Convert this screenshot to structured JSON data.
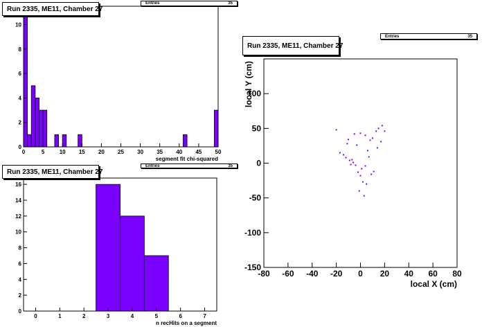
{
  "chart_data": [
    {
      "type": "bar",
      "title": "Run 2335, ME11, Chamber 27",
      "stats": {
        "label": "Entries",
        "value": "35"
      },
      "xlabel": "segment fit chi-squared",
      "xlim": [
        0,
        50
      ],
      "ylim": [
        0,
        11.5
      ],
      "bin_width": 1,
      "bins": [
        [
          0,
          11
        ],
        [
          1,
          1
        ],
        [
          2,
          5
        ],
        [
          3,
          4
        ],
        [
          4,
          3
        ],
        [
          5,
          3
        ],
        [
          6,
          0
        ],
        [
          7,
          0
        ],
        [
          8,
          1
        ],
        [
          9,
          0
        ],
        [
          10,
          1
        ],
        [
          11,
          0
        ],
        [
          12,
          0
        ],
        [
          13,
          0
        ],
        [
          14,
          1
        ],
        [
          41,
          1
        ],
        [
          49,
          3
        ]
      ],
      "xticks": [
        0,
        5,
        10,
        15,
        20,
        25,
        30,
        35,
        40,
        45,
        50
      ],
      "yticks": [
        0,
        2,
        4,
        6,
        8,
        10
      ],
      "color": "#7a00ff"
    },
    {
      "type": "bar",
      "title": "Run 2335, ME11, Chamber 27",
      "stats": {
        "label": "Entries",
        "value": "35"
      },
      "xlabel": "n recHits on a segment",
      "xlim": [
        -0.5,
        7.5
      ],
      "ylim": [
        0,
        16.8
      ],
      "bin_width": 1,
      "bins": [
        [
          3,
          16
        ],
        [
          4,
          12
        ],
        [
          5,
          7
        ]
      ],
      "xticks": [
        0,
        1,
        2,
        3,
        4,
        5,
        6,
        7
      ],
      "yticks": [
        0,
        2,
        4,
        6,
        8,
        10,
        12,
        14,
        16
      ],
      "color": "#7a00ff"
    },
    {
      "type": "scatter",
      "title": "Run 2335, ME11, Chamber 27",
      "stats": {
        "label": "Entries",
        "value": "35"
      },
      "xlabel": "local X (cm)",
      "ylabel": "local Y (cm)",
      "xlim": [
        -80,
        80
      ],
      "ylim": [
        -150,
        150
      ],
      "xticks": [
        -80,
        -60,
        -40,
        -20,
        0,
        20,
        40,
        60,
        80
      ],
      "yticks": [
        -150,
        -100,
        -50,
        0,
        50,
        100
      ],
      "points": [
        [
          -20,
          48
        ],
        [
          -17,
          15
        ],
        [
          -10,
          34
        ],
        [
          -5,
          42
        ],
        [
          -3,
          26
        ],
        [
          0,
          43
        ],
        [
          4,
          40
        ],
        [
          8,
          33
        ],
        [
          13,
          46
        ],
        [
          15,
          50
        ],
        [
          18,
          54
        ],
        [
          20,
          46
        ],
        [
          17,
          31
        ],
        [
          -12,
          8
        ],
        [
          -9,
          4
        ],
        [
          -7,
          5
        ],
        [
          -6,
          1
        ],
        [
          -4,
          -3
        ],
        [
          -2,
          -13
        ],
        [
          0,
          -18
        ],
        [
          2,
          -27
        ],
        [
          5,
          -30
        ],
        [
          9,
          -16
        ],
        [
          11,
          -12
        ],
        [
          -1,
          -40
        ],
        [
          3,
          -47
        ],
        [
          6,
          18
        ],
        [
          -14,
          12
        ],
        [
          7,
          9
        ],
        [
          1,
          -8
        ],
        [
          -8,
          -2
        ],
        [
          10,
          36
        ],
        [
          14,
          22
        ],
        [
          -11,
          28
        ],
        [
          4,
          -4
        ]
      ],
      "color": "#7a00ff"
    }
  ]
}
